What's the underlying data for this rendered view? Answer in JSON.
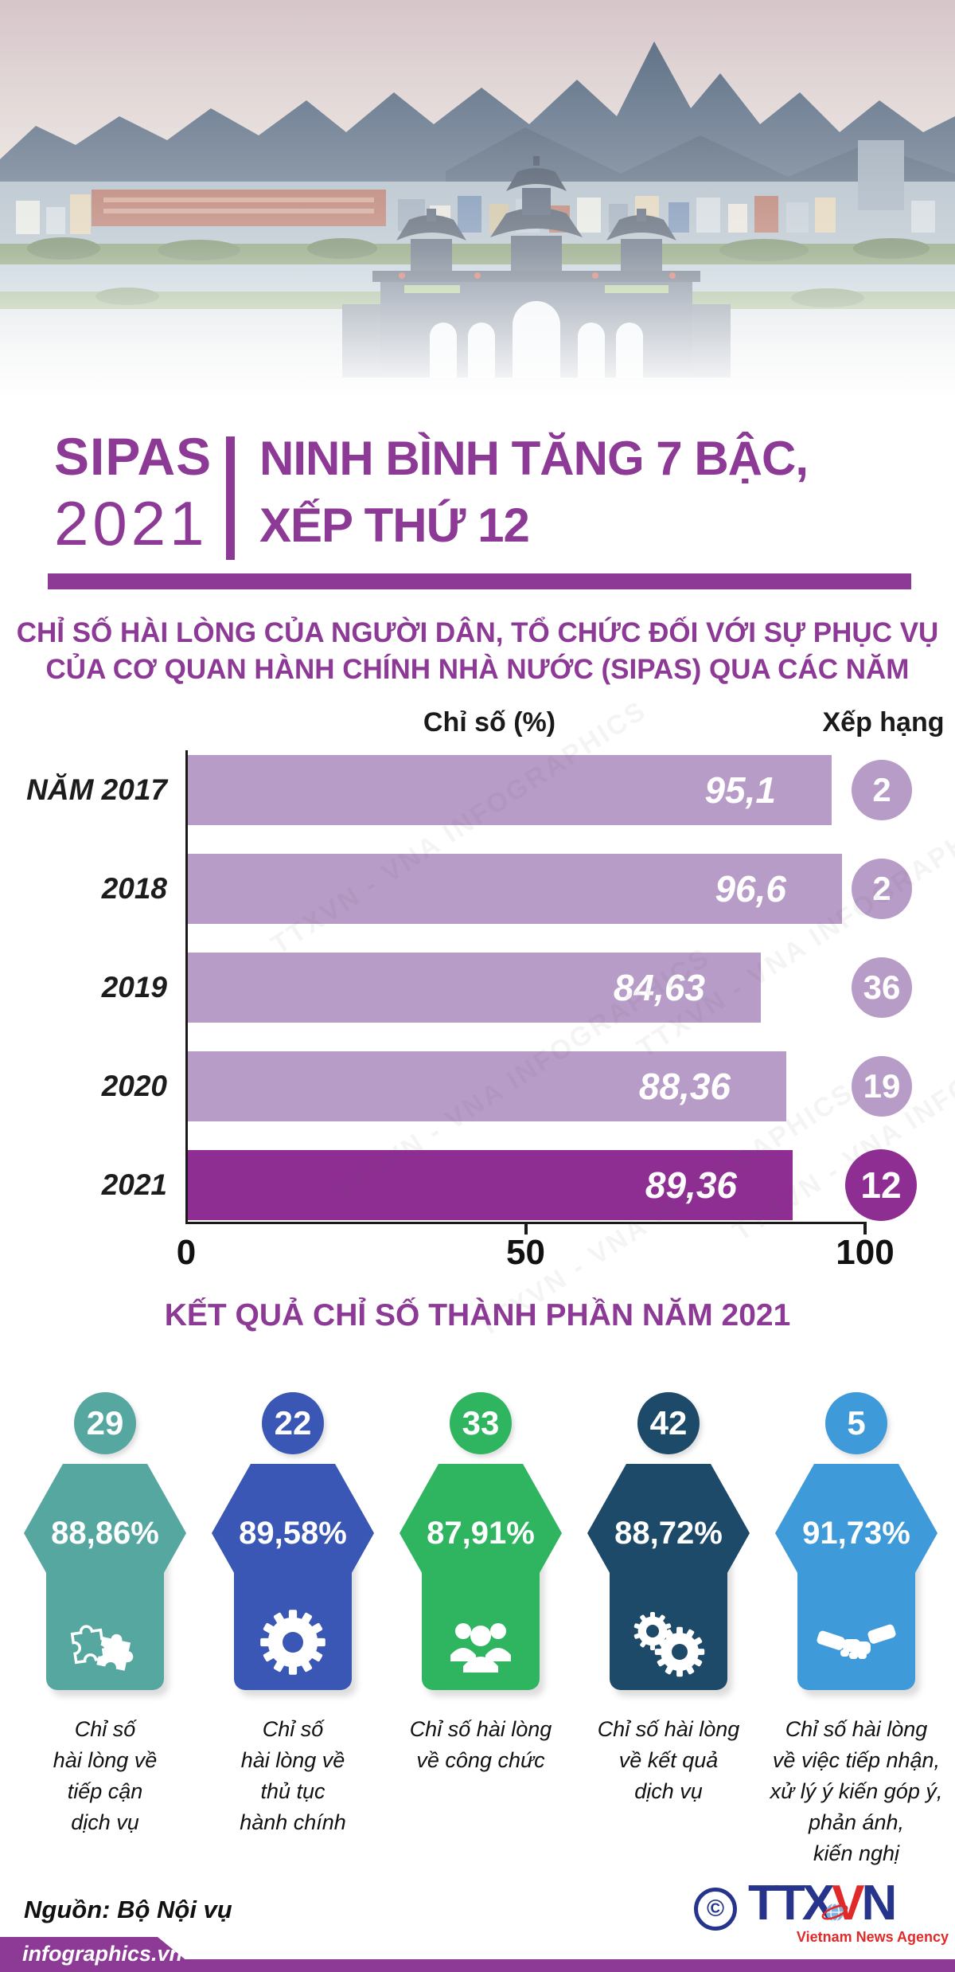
{
  "header": {
    "brand": "SIPAS",
    "year": "2021",
    "title": "NINH BÌNH TĂNG 7 BẬC,\nXẾP THỨ 12",
    "subtitle": "CHỈ SỐ HÀI LÒNG CỦA NGƯỜI DÂN, TỔ CHỨC ĐỐI VỚI SỰ PHỤC VỤ\nCỦA CƠ QUAN HÀNH CHÍNH NHÀ NƯỚC (SIPAS) QUA CÁC NĂM"
  },
  "chart_data": {
    "type": "bar",
    "orientation": "horizontal",
    "col_header_value": "Chỉ số (%)",
    "col_header_rank": "Xếp hạng",
    "categories": [
      "NĂM 2017",
      "2018",
      "2019",
      "2020",
      "2021"
    ],
    "values": [
      95.1,
      96.6,
      84.63,
      88.36,
      89.36
    ],
    "value_labels": [
      "95,1",
      "96,6",
      "84,63",
      "88,36",
      "89,36"
    ],
    "ranks": [
      "2",
      "2",
      "36",
      "19",
      "12"
    ],
    "xlim": [
      0,
      100
    ],
    "x_ticks": [
      "0",
      "50",
      "100"
    ],
    "x_tick_values": [
      0,
      50,
      100
    ],
    "grid": false,
    "bar_color": "#b89cc8",
    "bar_color_highlight": "#8e2e92",
    "highlight_index": 4
  },
  "components": {
    "title": "KẾT QUẢ CHỈ SỐ THÀNH PHẦN NĂM 2021",
    "items": [
      {
        "rank": "29",
        "value": "88,86%",
        "color": "#57a7a1",
        "icon": "puzzle-icon",
        "label": "Chỉ số\nhài lòng về\ntiếp cận\ndịch vụ"
      },
      {
        "rank": "22",
        "value": "89,58%",
        "color": "#3a57b5",
        "icon": "gear-icon",
        "label": "Chỉ số\nhài lòng về\nthủ tục\nhành chính"
      },
      {
        "rank": "33",
        "value": "87,91%",
        "color": "#2fb45f",
        "icon": "people-icon",
        "label": "Chỉ số hài lòng\nvề công chức"
      },
      {
        "rank": "42",
        "value": "88,72%",
        "color": "#1d4a68",
        "icon": "gears-icon",
        "label": "Chỉ số hài lòng\nvề kết quả\ndịch vụ"
      },
      {
        "rank": "5",
        "value": "91,73%",
        "color": "#3e9ad8",
        "icon": "handshake-icon",
        "label": "Chỉ số hài lòng\nvề việc tiếp nhận,\nxử lý ý kiến góp ý,\nphản ánh,\nkiến nghị"
      }
    ]
  },
  "footer": {
    "source": "Nguồn: Bộ Nội vụ",
    "site": "infographics.vn",
    "copyright": "©",
    "logo_t1": "TTX",
    "logo_t2": "V",
    "logo_t3": "N",
    "logo_sub": "Vietnam News Agency"
  },
  "watermark": "TTXVN - VNA  INFOGRAPHICS",
  "colors": {
    "purple": "#8c3a96",
    "purple_dark": "#8e2e92",
    "bar_light": "#b89cc8"
  }
}
